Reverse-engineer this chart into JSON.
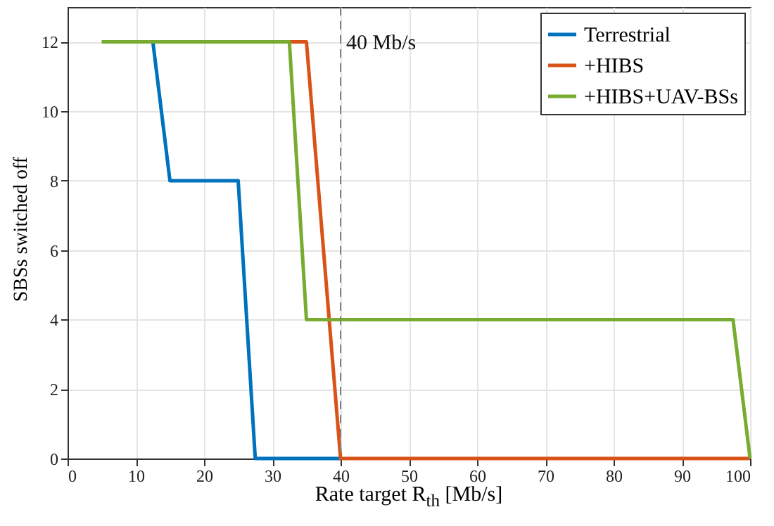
{
  "chart_data": {
    "type": "line",
    "xlabel": "Rate target R$_{th}$ [Mb/s]",
    "ylabel": "SBSs switched off",
    "xlim": [
      0,
      100
    ],
    "xticks": [
      0,
      10,
      20,
      30,
      40,
      50,
      60,
      70,
      80,
      90,
      100
    ],
    "ylim": [
      0,
      13
    ],
    "yticks": [
      0,
      2,
      4,
      6,
      8,
      10,
      12
    ],
    "grid": true,
    "legend": "top right",
    "line_style": "solid",
    "marker": "none",
    "series": [
      {
        "name": "Terrestrial",
        "color": "#0072bd",
        "x": [
          12.5,
          15,
          25,
          27.5,
          40
        ],
        "values": [
          12,
          8,
          8,
          0,
          0
        ]
      },
      {
        "name": "+HIBS",
        "color": "#d95319",
        "x": [
          32.5,
          35,
          40,
          100
        ],
        "values": [
          12,
          12,
          0,
          0
        ]
      },
      {
        "name": "+HIBS+UAV-BSs",
        "color": "#77ac30",
        "x": [
          5,
          32.5,
          35,
          97.5,
          100
        ],
        "values": [
          12,
          12,
          4,
          4,
          0
        ]
      }
    ],
    "ref_lines": [
      {
        "axis": "x",
        "value": 40,
        "label": "40 Mb/s",
        "color": "#808080",
        "line_style": "dashed"
      }
    ]
  }
}
